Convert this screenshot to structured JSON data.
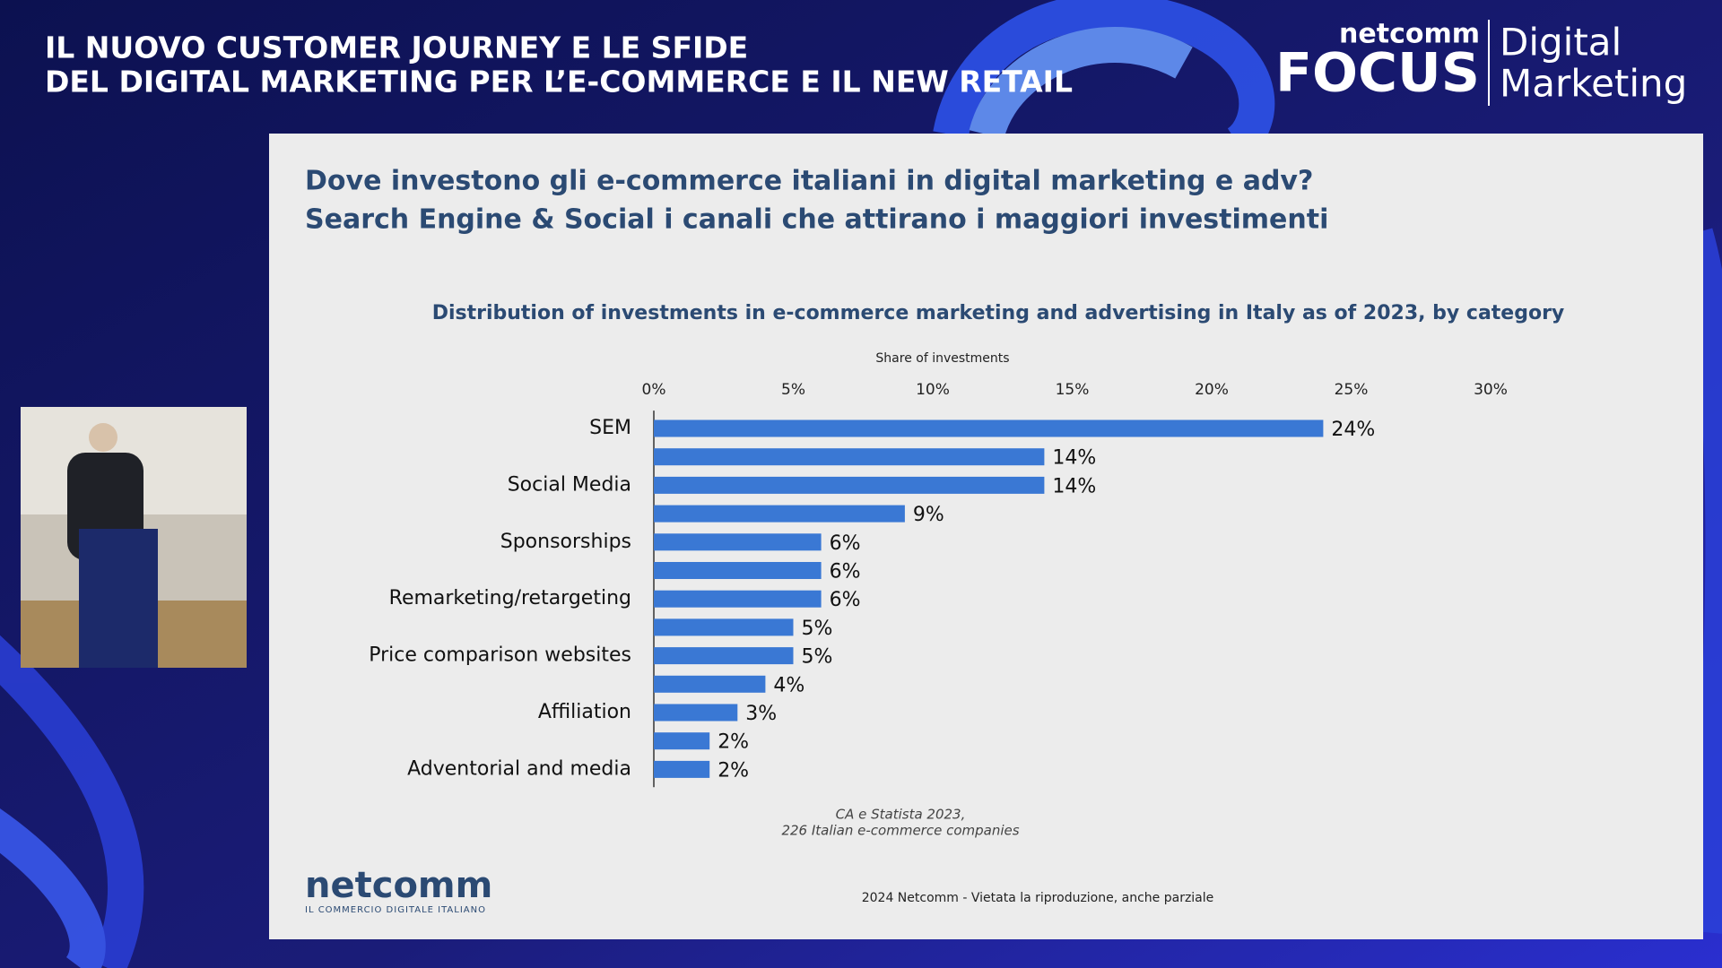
{
  "header": {
    "line1": "IL NUOVO CUSTOMER JOURNEY E LE SFIDE",
    "line2": "DEL DIGITAL MARKETING PER L’E-COMMERCE E IL NEW RETAIL"
  },
  "brand": {
    "small": "netcomm",
    "big": "FOCUS",
    "right1": "Digital",
    "right2": "Marketing"
  },
  "slide": {
    "title1": "Dove investono gli e-commerce italiani in digital marketing e adv?",
    "title2": "Search Engine & Social i canali che attirano i maggiori investimenti",
    "source1": "CA e Statista 2023,",
    "source2": "226 Italian e-commerce companies",
    "logo": "netcomm",
    "logo_tag": "IL COMMERCIO DIGITALE ITALIANO",
    "footer": "2024  Netcomm  - Vietata la riproduzione, anche parziale"
  },
  "chart_data": {
    "type": "hbar",
    "title": "Distribution of investments in e-commerce marketing and advertising in Italy as of 2023, by category",
    "x_label": "Share of investments",
    "categories": [
      "SEM",
      null,
      "Social Media",
      null,
      "Sponsorships",
      null,
      "Remarketing/retargeting",
      null,
      "Price comparison websites",
      null,
      "Affiliation",
      null,
      "Adventorial and media"
    ],
    "values": [
      24,
      14,
      14,
      9,
      6,
      6,
      6,
      5,
      5,
      4,
      3,
      2,
      2
    ],
    "value_labels": [
      "24%",
      "14%",
      "14%",
      "9%",
      "6%",
      "6%",
      "6%",
      "5%",
      "5%",
      "4%",
      "3%",
      "2%",
      "2%"
    ],
    "color": "#3a78d4",
    "xlim": [
      0,
      30
    ],
    "xticks": [
      {
        "value": 0,
        "label": "0%"
      },
      {
        "value": 5,
        "label": "5%"
      },
      {
        "value": 10,
        "label": "10%"
      },
      {
        "value": 15,
        "label": "15%"
      },
      {
        "value": 20,
        "label": "20%"
      },
      {
        "value": 25,
        "label": "25%"
      },
      {
        "value": 30,
        "label": "30%"
      }
    ],
    "grid": false
  }
}
